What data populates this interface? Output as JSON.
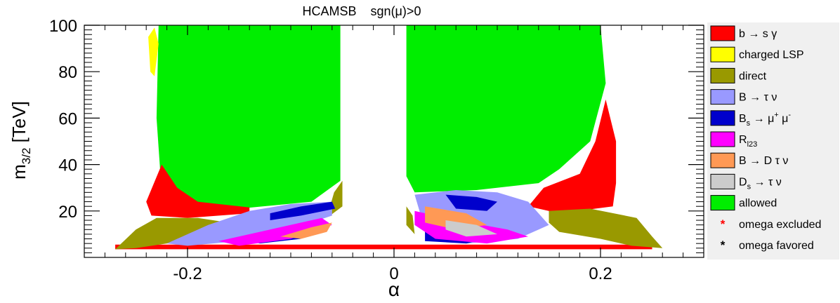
{
  "chart_data": {
    "type": "scatter",
    "title": "HCAMSB    sgn(μ)>0",
    "xlabel": "α",
    "ylabel": "m",
    "ylabel_sub": "3/2",
    "ylabel_unit": " [TeV]",
    "xlim": [
      -0.3,
      0.3
    ],
    "ylim": [
      0,
      100
    ],
    "x_ticks": [
      {
        "v": -0.2,
        "label": "-0.2"
      },
      {
        "v": 0,
        "label": "0"
      },
      {
        "v": 0.2,
        "label": "0.2"
      }
    ],
    "y_ticks": [
      {
        "v": 20,
        "label": "20"
      },
      {
        "v": 40,
        "label": "40"
      },
      {
        "v": 60,
        "label": "60"
      },
      {
        "v": 80,
        "label": "80"
      },
      {
        "v": 100,
        "label": "100"
      }
    ],
    "legend_position": "right",
    "legend": [
      {
        "key": "bsg",
        "type": "box",
        "color": "#ff0000",
        "label": "b → s γ"
      },
      {
        "key": "clsp",
        "type": "box",
        "color": "#ffff00",
        "label": "charged LSP"
      },
      {
        "key": "direct",
        "type": "box",
        "color": "#999900",
        "label": "direct"
      },
      {
        "key": "btaunu",
        "type": "box",
        "color": "#9999ff",
        "label": "B → τ ν"
      },
      {
        "key": "bsmumu",
        "type": "box",
        "color": "#0000cc",
        "label": "Bs → μ+ μ-",
        "label_main": "B",
        "label_sub": "s",
        "label_rest": " → μ",
        "label_sup1": "+",
        "label_rest2": " μ",
        "label_sup2": "-"
      },
      {
        "key": "rl23",
        "type": "box",
        "color": "#ff00ff",
        "label": "Rl23",
        "label_main": "R",
        "label_sub": "l23"
      },
      {
        "key": "bdtaunu",
        "type": "box",
        "color": "#ff9955",
        "label": "B → D τ ν"
      },
      {
        "key": "dstaunu",
        "type": "box",
        "color": "#cccccc",
        "label": "Ds → τ ν",
        "label_main": "D",
        "label_sub": "s",
        "label_rest": " → τ ν"
      },
      {
        "key": "allowed",
        "type": "box",
        "color": "#00ee00",
        "label": "allowed"
      },
      {
        "key": "omega_ex",
        "type": "star",
        "color": "#ff0000",
        "label": "omega excluded"
      },
      {
        "key": "omega_fav",
        "type": "star",
        "color": "#000000",
        "label": "omega favored"
      }
    ],
    "regions": [
      {
        "series": "allowed",
        "color": "#00ee00",
        "points": [
          [
            -0.228,
            100
          ],
          [
            -0.052,
            100
          ],
          [
            -0.052,
            33
          ],
          [
            -0.08,
            24
          ],
          [
            -0.15,
            21
          ],
          [
            -0.21,
            21
          ],
          [
            -0.225,
            28
          ],
          [
            -0.23,
            60
          ]
        ]
      },
      {
        "series": "allowed",
        "color": "#00ee00",
        "points": [
          [
            0.012,
            100
          ],
          [
            0.2,
            100
          ],
          [
            0.205,
            75
          ],
          [
            0.19,
            50
          ],
          [
            0.16,
            38
          ],
          [
            0.14,
            32
          ],
          [
            0.08,
            29
          ],
          [
            0.02,
            28
          ],
          [
            0.012,
            35
          ]
        ]
      },
      {
        "series": "bsg",
        "color": "#ff0000",
        "points": [
          [
            -0.225,
            40
          ],
          [
            -0.21,
            30
          ],
          [
            -0.19,
            24
          ],
          [
            -0.14,
            21.5
          ],
          [
            -0.14,
            19
          ],
          [
            -0.2,
            17
          ],
          [
            -0.235,
            18
          ],
          [
            -0.24,
            24
          ]
        ]
      },
      {
        "series": "bsg",
        "color": "#ff0000",
        "points": [
          [
            0.145,
            30
          ],
          [
            0.18,
            36
          ],
          [
            0.195,
            50
          ],
          [
            0.205,
            68
          ],
          [
            0.215,
            50
          ],
          [
            0.215,
            32
          ],
          [
            0.212,
            22
          ],
          [
            0.16,
            19
          ],
          [
            0.13,
            22
          ]
        ]
      },
      {
        "series": "bsg",
        "color": "#ff0000",
        "points": [
          [
            -0.27,
            3.5
          ],
          [
            0.25,
            3.5
          ],
          [
            0.25,
            5.5
          ],
          [
            0.1,
            5.5
          ],
          [
            -0.1,
            5.5
          ],
          [
            -0.27,
            5.5
          ]
        ]
      },
      {
        "series": "direct",
        "color": "#999900",
        "points": [
          [
            -0.27,
            3.5
          ],
          [
            -0.25,
            12
          ],
          [
            -0.23,
            17
          ],
          [
            -0.19,
            17
          ],
          [
            -0.16,
            15
          ],
          [
            -0.18,
            10
          ],
          [
            -0.22,
            6
          ],
          [
            -0.25,
            4
          ]
        ]
      },
      {
        "series": "direct",
        "color": "#999900",
        "points": [
          [
            0.15,
            20
          ],
          [
            0.19,
            21
          ],
          [
            0.235,
            17
          ],
          [
            0.25,
            9
          ],
          [
            0.26,
            4
          ],
          [
            0.23,
            5
          ],
          [
            0.2,
            8
          ],
          [
            0.16,
            11
          ],
          [
            0.15,
            15
          ]
        ]
      },
      {
        "series": "direct",
        "color": "#999900",
        "points": [
          [
            -0.062,
            18
          ],
          [
            -0.05,
            22
          ],
          [
            -0.05,
            33
          ],
          [
            -0.058,
            28
          ],
          [
            -0.062,
            22
          ]
        ]
      },
      {
        "series": "direct",
        "color": "#999900",
        "points": [
          [
            0.012,
            22
          ],
          [
            0.018,
            18
          ],
          [
            0.02,
            10
          ],
          [
            0.012,
            14
          ]
        ]
      },
      {
        "series": "btaunu",
        "color": "#9999ff",
        "points": [
          [
            -0.22,
            6
          ],
          [
            -0.18,
            14
          ],
          [
            -0.14,
            20
          ],
          [
            -0.1,
            23
          ],
          [
            -0.06,
            24
          ],
          [
            -0.06,
            18
          ],
          [
            -0.1,
            12
          ],
          [
            -0.15,
            7
          ],
          [
            -0.2,
            5
          ]
        ]
      },
      {
        "series": "btaunu",
        "color": "#9999ff",
        "points": [
          [
            0.02,
            27
          ],
          [
            0.06,
            29
          ],
          [
            0.1,
            28
          ],
          [
            0.13,
            24
          ],
          [
            0.15,
            14
          ],
          [
            0.12,
            8
          ],
          [
            0.07,
            6
          ],
          [
            0.03,
            12
          ]
        ]
      },
      {
        "series": "bsmumu",
        "color": "#0000cc",
        "points": [
          [
            -0.12,
            19
          ],
          [
            -0.09,
            22
          ],
          [
            -0.06,
            24
          ],
          [
            -0.057,
            21
          ],
          [
            -0.09,
            18
          ],
          [
            -0.12,
            16
          ]
        ]
      },
      {
        "series": "bsmumu",
        "color": "#0000cc",
        "points": [
          [
            -0.15,
            8
          ],
          [
            -0.11,
            10
          ],
          [
            -0.08,
            12
          ],
          [
            -0.09,
            8
          ],
          [
            -0.13,
            6
          ]
        ]
      },
      {
        "series": "bsmumu",
        "color": "#0000cc",
        "points": [
          [
            0.05,
            27
          ],
          [
            0.08,
            26
          ],
          [
            0.1,
            24
          ],
          [
            0.09,
            20
          ],
          [
            0.06,
            21
          ]
        ]
      },
      {
        "series": "bsmumu",
        "color": "#0000cc",
        "points": [
          [
            0.03,
            12
          ],
          [
            0.06,
            10
          ],
          [
            0.09,
            8
          ],
          [
            0.07,
            6
          ],
          [
            0.03,
            7
          ]
        ]
      },
      {
        "series": "rl23",
        "color": "#ff00ff",
        "points": [
          [
            -0.17,
            7
          ],
          [
            -0.12,
            12
          ],
          [
            -0.07,
            17
          ],
          [
            -0.06,
            14
          ],
          [
            -0.1,
            8
          ],
          [
            -0.15,
            5
          ]
        ]
      },
      {
        "series": "rl23",
        "color": "#ff00ff",
        "points": [
          [
            0.02,
            20
          ],
          [
            0.06,
            16
          ],
          [
            0.11,
            12
          ],
          [
            0.13,
            9
          ],
          [
            0.09,
            6
          ],
          [
            0.04,
            8
          ],
          [
            0.02,
            14
          ]
        ]
      },
      {
        "series": "bdtaunu",
        "color": "#ff9955",
        "points": [
          [
            -0.11,
            9
          ],
          [
            -0.08,
            13
          ],
          [
            -0.06,
            15
          ],
          [
            -0.065,
            11
          ],
          [
            -0.09,
            8
          ]
        ]
      },
      {
        "series": "bdtaunu",
        "color": "#ff9955",
        "points": [
          [
            0.03,
            22
          ],
          [
            0.07,
            19
          ],
          [
            0.09,
            14
          ],
          [
            0.06,
            12
          ],
          [
            0.03,
            15
          ]
        ]
      },
      {
        "series": "dstaunu",
        "color": "#cccccc",
        "points": [
          [
            0.05,
            16
          ],
          [
            0.08,
            14
          ],
          [
            0.1,
            10
          ],
          [
            0.07,
            9
          ],
          [
            0.05,
            12
          ]
        ]
      },
      {
        "series": "clsp",
        "color": "#ffff00",
        "points": [
          [
            -0.238,
            95
          ],
          [
            -0.232,
            99
          ],
          [
            -0.228,
            92
          ],
          [
            -0.232,
            78
          ],
          [
            -0.236,
            80
          ]
        ]
      }
    ]
  }
}
